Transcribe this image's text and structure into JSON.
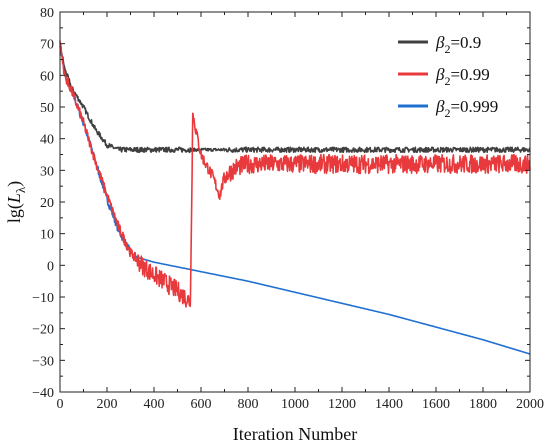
{
  "chart_data": {
    "type": "line",
    "title": "",
    "xlabel": "Iteration Number",
    "ylabel": {
      "base": "lg(",
      "symbol": "L",
      "subscript": "λ",
      "close": ")"
    },
    "xlim": [
      0,
      2000
    ],
    "ylim": [
      -40,
      80
    ],
    "xticks": [
      0,
      200,
      400,
      600,
      800,
      1000,
      1200,
      1400,
      1600,
      1800,
      2000
    ],
    "yticks": [
      -40,
      -30,
      -20,
      -10,
      0,
      10,
      20,
      30,
      40,
      50,
      60,
      70,
      80
    ],
    "grid": false,
    "legend_position": "top-right",
    "series": [
      {
        "name": {
          "symbol": "β",
          "subscript": "2",
          "value": "=0.9"
        },
        "color": "#404040",
        "points": [
          [
            0,
            70
          ],
          [
            20,
            62
          ],
          [
            50,
            56
          ],
          [
            100,
            50
          ],
          [
            150,
            43
          ],
          [
            200,
            38
          ],
          [
            250,
            36.5
          ],
          [
            300,
            36.5
          ],
          [
            400,
            36.5
          ],
          [
            600,
            36.5
          ],
          [
            800,
            36.5
          ],
          [
            1000,
            36.5
          ],
          [
            1200,
            36.5
          ],
          [
            1400,
            36.5
          ],
          [
            1600,
            36.5
          ],
          [
            1800,
            36.5
          ],
          [
            2000,
            36.5
          ]
        ],
        "noise": 0.8
      },
      {
        "name": {
          "symbol": "β",
          "subscript": "2",
          "value": "=0.99"
        },
        "color": "#e8393c",
        "points": [
          [
            0,
            70
          ],
          [
            20,
            60
          ],
          [
            50,
            55
          ],
          [
            100,
            45
          ],
          [
            150,
            33
          ],
          [
            200,
            22
          ],
          [
            250,
            12
          ],
          [
            300,
            4
          ],
          [
            350,
            0
          ],
          [
            400,
            -3
          ],
          [
            450,
            -5.5
          ],
          [
            500,
            -8
          ],
          [
            555,
            -11.5
          ],
          [
            556,
            -5
          ],
          [
            565,
            48
          ],
          [
            580,
            42
          ],
          [
            600,
            35
          ],
          [
            620,
            32
          ],
          [
            650,
            28
          ],
          [
            680,
            22
          ],
          [
            700,
            28
          ],
          [
            750,
            31
          ],
          [
            800,
            32
          ],
          [
            1000,
            32
          ],
          [
            1200,
            32
          ],
          [
            1400,
            32
          ],
          [
            1600,
            32
          ],
          [
            1800,
            32
          ],
          [
            2000,
            32
          ]
        ],
        "noise": 3
      },
      {
        "name": {
          "symbol": "β",
          "subscript": "2",
          "value": "=0.999"
        },
        "color": "#1f6fd1",
        "points": [
          [
            0,
            70
          ],
          [
            20,
            60
          ],
          [
            50,
            55
          ],
          [
            100,
            45
          ],
          [
            150,
            33
          ],
          [
            200,
            21
          ],
          [
            250,
            11
          ],
          [
            300,
            4
          ],
          [
            330,
            2.5
          ],
          [
            400,
            1
          ],
          [
            600,
            -2
          ],
          [
            800,
            -5
          ],
          [
            1000,
            -8.5
          ],
          [
            1200,
            -12
          ],
          [
            1400,
            -15.5
          ],
          [
            1600,
            -19.5
          ],
          [
            1800,
            -23.5
          ],
          [
            2000,
            -28
          ]
        ],
        "noise": 0
      }
    ]
  }
}
